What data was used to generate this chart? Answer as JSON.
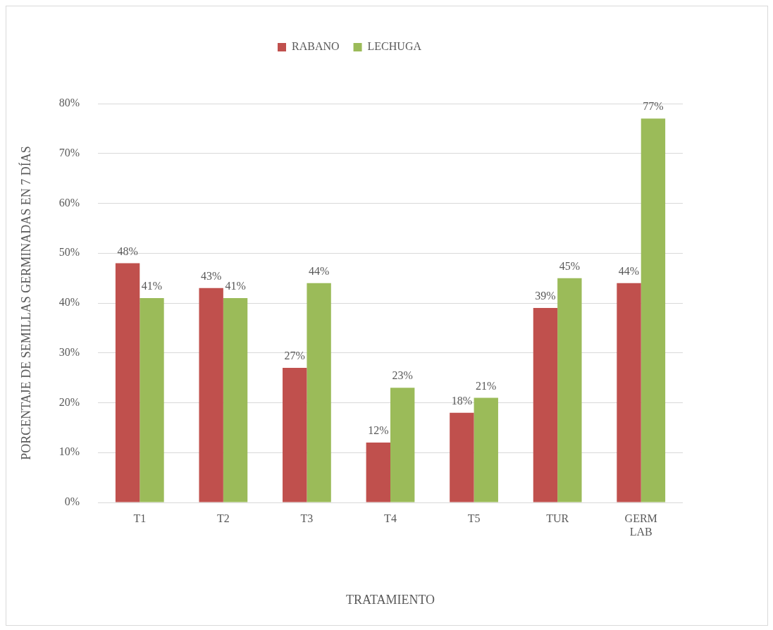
{
  "chart_data": {
    "type": "bar",
    "xlabel": "TRATAMIENTO",
    "ylabel": "PORCENTAJE DE SEMILLAS GERMINADAS EN 7 DÍAS",
    "categories": [
      "T1",
      "T2",
      "T3",
      "T4",
      "T5",
      "TUR",
      "GERM LAB"
    ],
    "series": [
      {
        "name": "RABANO",
        "color": "#c0504d",
        "values": [
          48,
          43,
          27,
          12,
          18,
          39,
          44
        ],
        "value_labels": [
          "48%",
          "43%",
          "27%",
          "12%",
          "18%",
          "39%",
          "44%"
        ]
      },
      {
        "name": "LECHUGA",
        "color": "#9bbb59",
        "values": [
          41,
          41,
          44,
          23,
          21,
          45,
          77
        ],
        "value_labels": [
          "41%",
          "41%",
          "44%",
          "23%",
          "21%",
          "45%",
          "77%"
        ]
      }
    ],
    "ylim": [
      0,
      80
    ],
    "yticks": [
      {
        "value": 0,
        "label": "0%"
      },
      {
        "value": 10,
        "label": "10%"
      },
      {
        "value": 20,
        "label": "20%"
      },
      {
        "value": 30,
        "label": "30%"
      },
      {
        "value": 40,
        "label": "40%"
      },
      {
        "value": 50,
        "label": "50%"
      },
      {
        "value": 60,
        "label": "60%"
      },
      {
        "value": 70,
        "label": "70%"
      },
      {
        "value": 80,
        "label": "80%"
      }
    ],
    "grid": "y",
    "legend": "top"
  }
}
